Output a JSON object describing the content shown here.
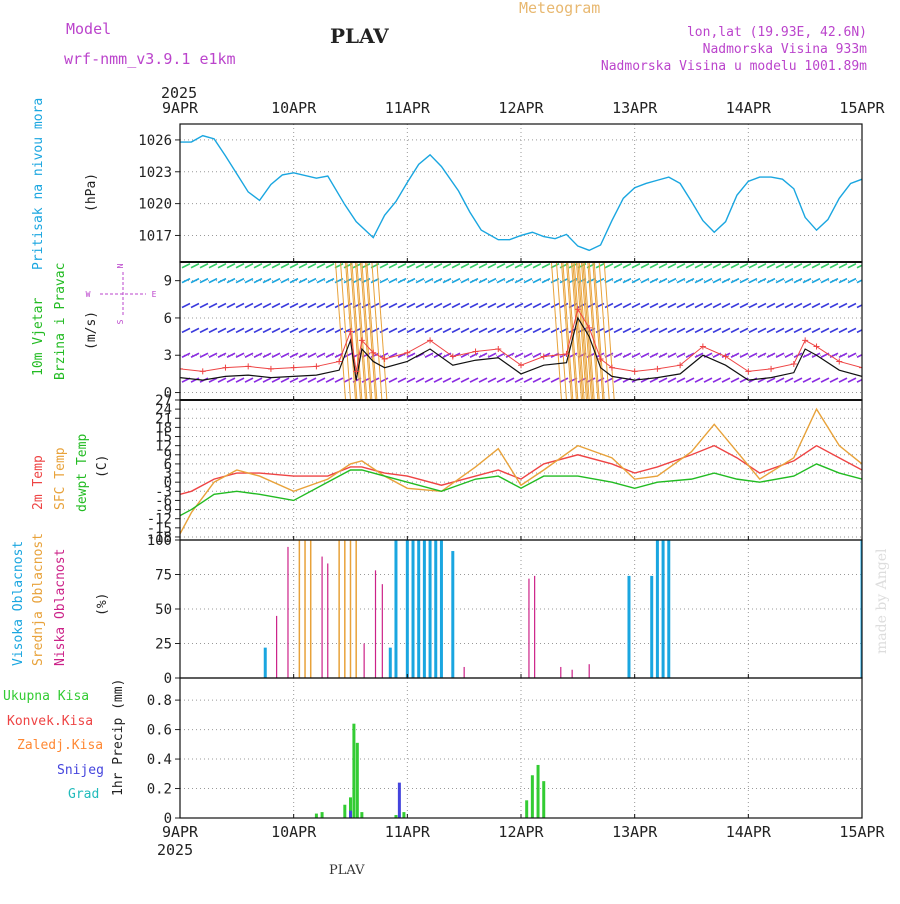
{
  "header": {
    "model_label": "Model",
    "model_name": "wrf-nmm_v3.9.1 e1km",
    "station": "PLAV",
    "product": "Meteogram",
    "location": "lon,lat (19.93E, 42.6N)",
    "elevation": "Nadmorska Visina 933m",
    "model_elevation": "Nadmorska Visina u modelu 1001.89m",
    "year": "2025",
    "footer_station": "PLAV",
    "watermark": "made by Angel"
  },
  "time_axis": {
    "dates": [
      "9APR",
      "10APR",
      "11APR",
      "12APR",
      "13APR",
      "14APR",
      "15APR"
    ],
    "year": "2025"
  },
  "colors": {
    "pressure": "#1aa6e0",
    "temp2m": "#ee4444",
    "sfc": "#e8a23a",
    "dew": "#22bb22",
    "high": "#1aa6e0",
    "mid": "#e8a23a",
    "low": "#cc2288",
    "total": "#33cc33",
    "conv": "#ee4444",
    "frozen": "#ff8833",
    "snow": "#4444dd",
    "graupel": "#22bbbb",
    "model": "#bb44cc"
  },
  "chart_data": [
    {
      "type": "line",
      "title": "Pritisak na nivou mora",
      "ylabel": "(hPa)",
      "ylim": [
        1014.5,
        1027.5
      ],
      "yticks": [
        1017,
        1020,
        1023,
        1026
      ],
      "series": [
        {
          "name": "Pritisak na nivou mora",
          "x": [
            0,
            0.1,
            0.2,
            0.3,
            0.4,
            0.5,
            0.6,
            0.7,
            0.8,
            0.9,
            1,
            1.2,
            1.3,
            1.45,
            1.55,
            1.7,
            1.8,
            1.9,
            2,
            2.1,
            2.2,
            2.3,
            2.45,
            2.55,
            2.65,
            2.8,
            2.9,
            3.0,
            3.1,
            3.2,
            3.3,
            3.4,
            3.5,
            3.6,
            3.7,
            3.8,
            3.9,
            4.0,
            4.1,
            4.2,
            4.3,
            4.4,
            4.5,
            4.6,
            4.7,
            4.8,
            4.9,
            5.0,
            5.1,
            5.2,
            5.3,
            5.4,
            5.5,
            5.6,
            5.7,
            5.8,
            5.9,
            6.0
          ],
          "values": [
            1025.8,
            1025.8,
            1026.4,
            1026.1,
            1024.5,
            1022.8,
            1021.1,
            1020.3,
            1021.8,
            1022.7,
            1022.9,
            1022.4,
            1022.6,
            1019.9,
            1018.3,
            1016.8,
            1018.9,
            1020.2,
            1022.0,
            1023.7,
            1024.6,
            1023.5,
            1021.2,
            1019.2,
            1017.5,
            1016.6,
            1016.6,
            1017.0,
            1017.3,
            1016.9,
            1016.7,
            1017.1,
            1016.0,
            1015.6,
            1016.1,
            1018.4,
            1020.5,
            1021.5,
            1021.9,
            1022.2,
            1022.5,
            1021.9,
            1020.2,
            1018.4,
            1017.3,
            1018.3,
            1020.8,
            1022.1,
            1022.5,
            1022.5,
            1022.3,
            1021.4,
            1018.7,
            1017.5,
            1018.5,
            1020.5,
            1021.9,
            1022.3
          ]
        }
      ]
    },
    {
      "type": "line",
      "title": "10m Vjetar Brzina i Pravac",
      "ylabel": "(m/s)",
      "ylim": [
        -0.6,
        10.5
      ],
      "yticks": [
        0,
        3,
        6,
        9
      ],
      "compass": {
        "n": "N",
        "s": "S",
        "e": "E",
        "w": "W"
      },
      "series": [
        {
          "name": "Brzina",
          "x": [
            0,
            0.2,
            0.4,
            0.6,
            0.8,
            1,
            1.2,
            1.4,
            1.5,
            1.55,
            1.6,
            1.7,
            1.8,
            2,
            2.2,
            2.4,
            2.6,
            2.8,
            3,
            3.2,
            3.4,
            3.5,
            3.6,
            3.7,
            3.8,
            4,
            4.2,
            4.4,
            4.6,
            4.8,
            5,
            5.2,
            5.4,
            5.5,
            5.6,
            5.8,
            6
          ],
          "values": [
            1.2,
            1.0,
            1.3,
            1.4,
            1.2,
            1.3,
            1.4,
            1.8,
            4.2,
            1.0,
            3.5,
            2.5,
            2.0,
            2.5,
            3.5,
            2.2,
            2.6,
            2.8,
            1.5,
            2.2,
            2.4,
            6.0,
            4.5,
            2.0,
            1.3,
            1.0,
            1.2,
            1.5,
            3.0,
            2.2,
            1.0,
            1.2,
            1.6,
            3.5,
            3.0,
            1.8,
            1.3
          ]
        }
      ]
    },
    {
      "type": "line",
      "title": "2m Temp / SFC Temp / dewpt Temp",
      "ylabel": "(C)",
      "ylim": [
        -19,
        27
      ],
      "yticks": [
        -18,
        -15,
        -12,
        -9,
        -6,
        -3,
        0,
        3,
        6,
        9,
        12,
        15,
        18,
        21,
        24,
        27
      ],
      "series": [
        {
          "name": "2m Temp",
          "x": [
            0,
            0.1,
            0.3,
            0.5,
            0.7,
            1,
            1.3,
            1.5,
            1.6,
            1.8,
            2,
            2.3,
            2.6,
            2.8,
            3,
            3.2,
            3.5,
            3.8,
            4,
            4.2,
            4.5,
            4.7,
            4.9,
            5.1,
            5.4,
            5.6,
            5.8,
            6
          ],
          "values": [
            -4,
            -3,
            1,
            3,
            3,
            2,
            2,
            5,
            5,
            3,
            2,
            -1,
            2,
            4,
            1,
            6,
            9,
            6,
            3,
            5,
            9,
            12,
            8,
            3,
            7,
            12,
            8,
            4
          ]
        },
        {
          "name": "SFC Temp",
          "x": [
            0,
            0.1,
            0.3,
            0.5,
            0.7,
            1,
            1.3,
            1.5,
            1.6,
            1.8,
            2,
            2.3,
            2.6,
            2.8,
            3,
            3.2,
            3.5,
            3.8,
            4,
            4.2,
            4.5,
            4.7,
            4.9,
            5.1,
            5.4,
            5.6,
            5.8,
            6
          ],
          "values": [
            -17,
            -10,
            0,
            4,
            2,
            -3,
            1,
            6,
            7,
            2,
            -2,
            -3,
            5,
            11,
            -1,
            4,
            12,
            8,
            1,
            2,
            10,
            19,
            10,
            1,
            8,
            24,
            12,
            6
          ]
        },
        {
          "name": "dewpt Temp",
          "x": [
            0,
            0.1,
            0.3,
            0.5,
            0.7,
            1,
            1.3,
            1.5,
            1.6,
            1.8,
            2,
            2.3,
            2.6,
            2.8,
            3,
            3.2,
            3.5,
            3.8,
            4,
            4.2,
            4.5,
            4.7,
            4.9,
            5.1,
            5.4,
            5.6,
            5.8,
            6
          ],
          "values": [
            -11,
            -9,
            -4,
            -3,
            -4,
            -6,
            0,
            4,
            4,
            2,
            0,
            -3,
            1,
            2,
            -2,
            2,
            2,
            0,
            -2,
            0,
            1,
            3,
            1,
            0,
            2,
            6,
            3,
            1
          ]
        }
      ]
    },
    {
      "type": "bar",
      "title": "Visoka Oblacnost / Srednja Oblacnost / Niska Oblacnost",
      "ylabel": "(%)",
      "ylim": [
        0,
        100
      ],
      "yticks": [
        0,
        25,
        50,
        75,
        100
      ],
      "series": [
        {
          "name": "Visoka Oblacnost",
          "x": [
            0.75,
            1.85,
            1.9,
            2.0,
            2.05,
            2.1,
            2.15,
            2.2,
            2.25,
            2.3,
            2.4,
            3.95,
            4.15,
            4.2,
            4.25,
            4.3,
            6.0
          ],
          "values": [
            22,
            22,
            100,
            100,
            100,
            100,
            100,
            100,
            100,
            100,
            92,
            74,
            74,
            100,
            100,
            100,
            100
          ]
        },
        {
          "name": "Srednja Oblacnost",
          "x": [
            1.05,
            1.1,
            1.15,
            1.4,
            1.45,
            1.5,
            1.55
          ],
          "values": [
            100,
            100,
            100,
            100,
            100,
            100,
            100
          ]
        },
        {
          "name": "Niska Oblacnost",
          "x": [
            0.85,
            0.95,
            1.25,
            1.3,
            1.62,
            1.72,
            1.78,
            2.5,
            3.07,
            3.12,
            3.35,
            3.45,
            3.6
          ],
          "values": [
            45,
            95,
            88,
            83,
            25,
            78,
            68,
            8,
            72,
            74,
            8,
            6,
            10
          ]
        }
      ]
    },
    {
      "type": "bar",
      "title": "1hr Precip",
      "ylabel": "(mm)",
      "ylim": [
        0,
        0.95
      ],
      "yticks": [
        0,
        0.2,
        0.4,
        0.6,
        0.8
      ],
      "series": [
        {
          "name": "Ukupna Kisa",
          "x": [
            1.2,
            1.25,
            1.45,
            1.5,
            1.53,
            1.56,
            1.6,
            1.9,
            1.97,
            3.05,
            3.1,
            3.15,
            3.2
          ],
          "values": [
            0.03,
            0.04,
            0.09,
            0.14,
            0.64,
            0.51,
            0.04,
            0.02,
            0.04,
            0.12,
            0.29,
            0.36,
            0.25
          ]
        },
        {
          "name": "Konvek.Kisa",
          "x": [],
          "values": []
        },
        {
          "name": "Zaledj.Kisa",
          "x": [],
          "values": []
        },
        {
          "name": "Snijeg",
          "x": [
            1.5,
            1.93
          ],
          "values": [
            0.05,
            0.24
          ]
        },
        {
          "name": "Grad",
          "x": [],
          "values": []
        }
      ]
    }
  ]
}
